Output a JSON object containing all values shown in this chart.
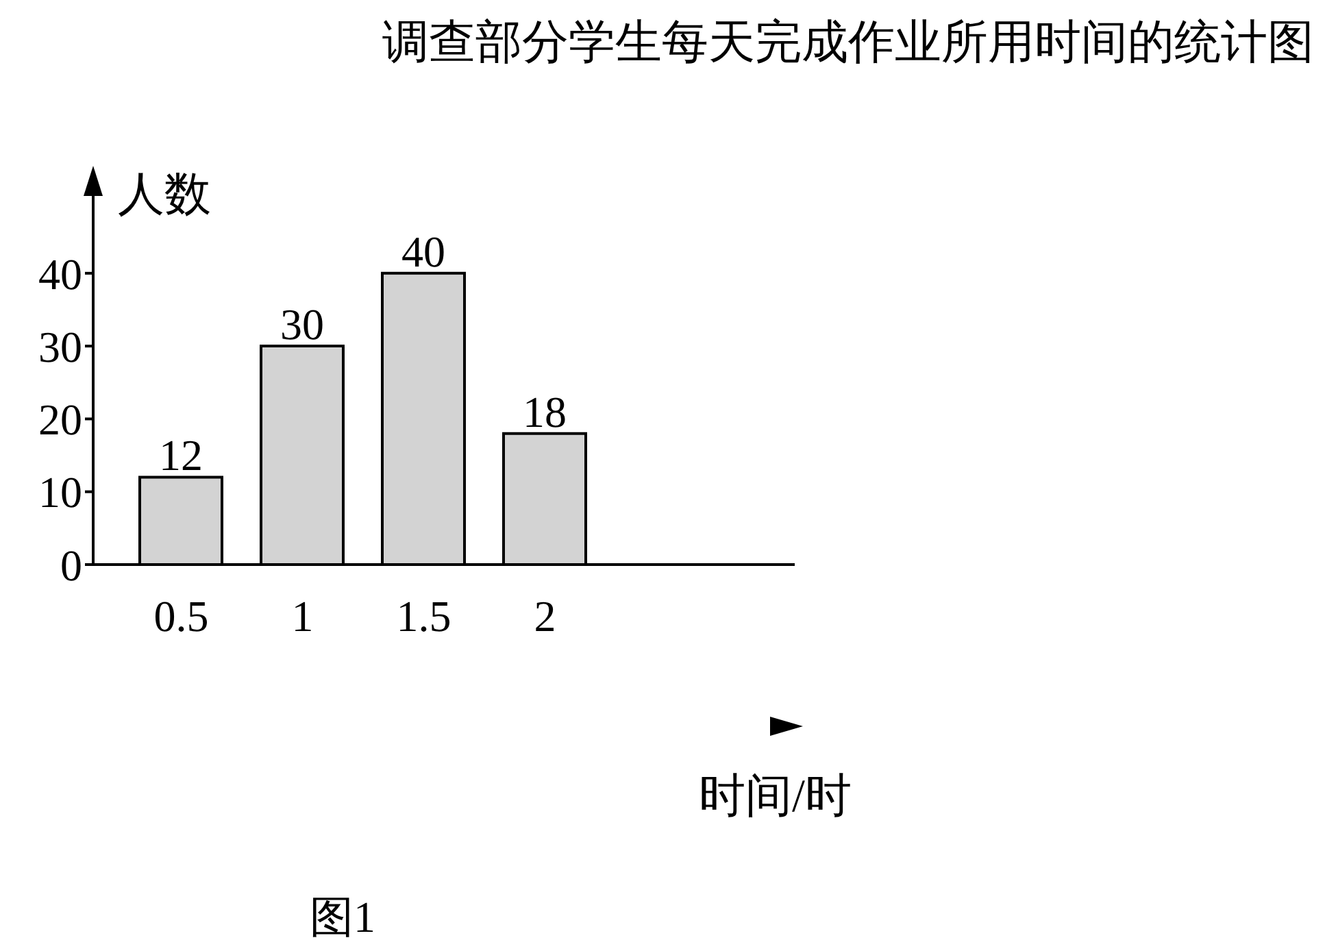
{
  "chart_data": {
    "type": "bar",
    "title": "调查部分学生每天完成作业所用时间的统计图",
    "xlabel": "时间/时",
    "ylabel": "人数",
    "categories": [
      "0.5",
      "1",
      "1.5",
      "2"
    ],
    "values": [
      12,
      30,
      40,
      18
    ],
    "color": "#d3d3d3",
    "ylim": [
      0,
      54
    ],
    "yticks": [
      0,
      10,
      20,
      30,
      40
    ],
    "data_labels": true,
    "annotations": [
      "图1"
    ]
  }
}
